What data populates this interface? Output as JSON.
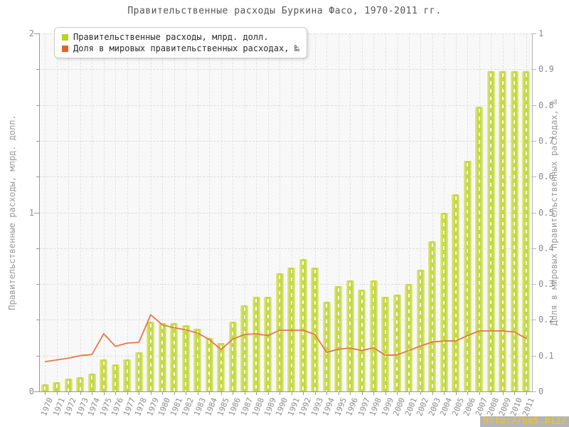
{
  "title": "Правительственные расходы Буркина Фасо, 1970-2011 гг.",
  "legend": {
    "items": [
      {
        "label": "Правительственные расходы, млрд. долл.",
        "color": "#b8d321"
      },
      {
        "label": "Доля в мировых правительственных расходах, ‰",
        "color": "#e2622b"
      }
    ]
  },
  "watermark": "http://be5.biz/",
  "colors": {
    "bar_fill": "#c6d943",
    "bar_edge": "#e0ec95",
    "line": "#e8764a",
    "grid": "#dedede",
    "axis": "#999999",
    "tick_text": "#8c8c8c",
    "title_text": "#555555",
    "plot_bg": "#f8f8f8",
    "watermark_bg": "#b5b5b5",
    "watermark_text": "#ffc400"
  },
  "chart_data": {
    "type": "bar",
    "title": "Правительственные расходы Буркина Фасо, 1970-2011 гг.",
    "categories": [
      "1970",
      "1971",
      "1972",
      "1973",
      "1974",
      "1975",
      "1976",
      "1977",
      "1978",
      "1979",
      "1980",
      "1981",
      "1982",
      "1983",
      "1984",
      "1985",
      "1986",
      "1987",
      "1988",
      "1989",
      "1990",
      "1991",
      "1992",
      "1993",
      "1994",
      "1995",
      "1996",
      "1997",
      "1998",
      "1999",
      "2000",
      "2001",
      "2002",
      "2003",
      "2004",
      "2005",
      "2006",
      "2007",
      "2008",
      "2009",
      "2010",
      "2011"
    ],
    "series": [
      {
        "name": "Правительственные расходы, млрд. долл.",
        "type": "bar",
        "axis": "left",
        "color": "#c6d943",
        "values": [
          0.04,
          0.05,
          0.07,
          0.08,
          0.1,
          0.18,
          0.15,
          0.18,
          0.22,
          0.39,
          0.38,
          0.38,
          0.37,
          0.35,
          0.3,
          0.27,
          0.39,
          0.48,
          0.53,
          0.53,
          0.66,
          0.69,
          0.74,
          0.69,
          0.5,
          0.59,
          0.62,
          0.57,
          0.62,
          0.53,
          0.54,
          0.6,
          0.68,
          0.84,
          1.0,
          1.1,
          1.29,
          1.59,
          1.79,
          1.79,
          1.79,
          1.79
        ]
      },
      {
        "name": "Доля в мировых правительственных расходах, ‰",
        "type": "line",
        "axis": "right",
        "color": "#e8764a",
        "values": [
          0.083,
          0.088,
          0.093,
          0.1,
          0.103,
          0.161,
          0.126,
          0.135,
          0.137,
          0.214,
          0.186,
          0.178,
          0.172,
          0.163,
          0.145,
          0.117,
          0.146,
          0.159,
          0.161,
          0.156,
          0.171,
          0.171,
          0.171,
          0.159,
          0.109,
          0.118,
          0.121,
          0.114,
          0.122,
          0.101,
          0.102,
          0.114,
          0.127,
          0.138,
          0.141,
          0.141,
          0.156,
          0.169,
          0.169,
          0.169,
          0.166,
          0.148
        ]
      }
    ],
    "left_axis": {
      "label": "Правительственные расходы, млрд. долл.",
      "min": 0,
      "max": 2,
      "tick_labels": [
        "0",
        "1",
        "2"
      ],
      "minor_step": 0.2
    },
    "right_axis": {
      "label": "Доля в мировых правительственных расходах, ‰",
      "min": 0,
      "max": 1,
      "tick_labels": [
        "0",
        "0.1",
        "0.2",
        "0.3",
        "0.4",
        "0.5",
        "0.6",
        "0.7",
        "0.8",
        "0.9",
        "1"
      ],
      "tick_step": 0.1
    },
    "grid": true,
    "legend_position": "top-left"
  }
}
